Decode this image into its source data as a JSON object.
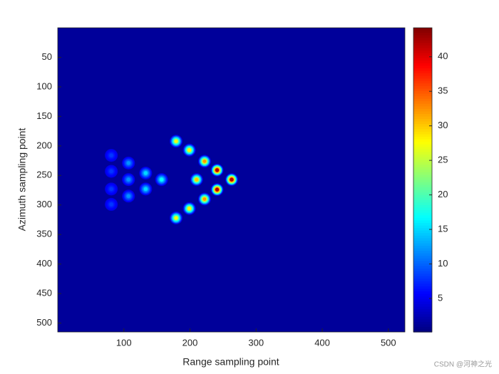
{
  "chart_data": {
    "type": "heatmap",
    "xlabel": "Range sampling point",
    "ylabel": "Azimuth sampling point",
    "x": [
      179,
      199,
      222,
      241,
      210,
      263,
      241,
      222,
      199,
      179,
      157,
      133,
      133,
      107,
      107,
      107,
      81,
      81,
      81,
      81
    ],
    "y": [
      192,
      207,
      226,
      241,
      257,
      257,
      274,
      290,
      306,
      322,
      257,
      246,
      273,
      229,
      257,
      285,
      216,
      243,
      273,
      299
    ],
    "values": [
      27,
      28,
      32,
      42,
      30,
      42,
      42,
      32,
      28,
      27,
      17,
      15,
      15,
      12,
      12,
      12,
      8,
      8,
      8,
      8
    ],
    "xlim": [
      0,
      525
    ],
    "xticks": [
      100,
      200,
      300,
      400,
      500
    ],
    "ylim": [
      0,
      515
    ],
    "yticks": [
      50,
      100,
      150,
      200,
      250,
      300,
      350,
      400,
      450,
      500
    ],
    "clim": [
      0.15,
      44.2
    ],
    "cticks": [
      5,
      10,
      15,
      20,
      25,
      30,
      35,
      40
    ],
    "colormap": "jet",
    "y_reversed": true,
    "watermark": "CSDN @河神之光"
  }
}
